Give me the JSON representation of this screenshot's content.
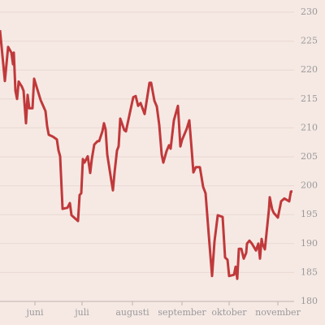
{
  "chart_data": {
    "type": "line",
    "xlim": [
      0,
      181
    ],
    "xticks": [
      {
        "value": 21.5,
        "label": "juni"
      },
      {
        "value": 50.5,
        "label": "juli"
      },
      {
        "value": 81.5,
        "label": "augusti"
      },
      {
        "value": 112,
        "label": "september"
      },
      {
        "value": 141,
        "label": "oktober"
      },
      {
        "value": 171,
        "label": "november"
      }
    ],
    "ylim": [
      180,
      230
    ],
    "yticks": [
      180,
      185,
      190,
      195,
      200,
      205,
      210,
      215,
      220,
      225,
      230
    ],
    "grid": true,
    "series": [
      {
        "color": "#c0393b",
        "x": [
          0,
          3,
          5,
          7,
          8,
          8.5,
          9.5,
          10.5,
          11.5,
          13.5,
          14.5,
          16,
          17,
          18,
          20,
          21,
          22.5,
          25,
          28,
          29,
          30,
          32.5,
          35,
          36,
          37,
          38.5,
          41.5,
          43,
          44,
          48,
          49,
          50,
          51,
          52,
          54,
          55.5,
          56.5,
          58,
          60,
          61,
          63,
          64,
          65,
          66,
          68.5,
          69.5,
          70.5,
          72,
          73,
          74,
          76.5,
          77.5,
          80,
          82,
          83.5,
          85,
          86.5,
          89,
          92,
          93,
          95,
          96.5,
          98,
          99.5,
          100.5,
          102.5,
          104,
          105,
          107,
          109.5,
          111,
          112,
          115,
          116.5,
          118,
          119,
          120.5,
          123,
          124,
          125,
          126.5,
          128.5,
          130.5,
          132,
          134,
          137,
          138.5,
          140,
          141,
          144,
          145,
          146,
          147,
          148.5,
          150,
          151.5,
          152,
          153.5,
          155,
          157.5,
          159,
          160,
          161,
          161.5,
          163,
          165.5,
          166,
          167.5,
          168.5,
          171,
          173,
          175,
          178,
          179,
          180
        ],
        "values": [
          226.9,
          218.1,
          224,
          223,
          221,
          223,
          216.4,
          215,
          218,
          217.1,
          216.4,
          210.8,
          215.7,
          213.4,
          213.4,
          218.5,
          217.1,
          214.8,
          212.9,
          210.3,
          208.8,
          208.5,
          208,
          206.1,
          205.1,
          196,
          196.2,
          197,
          194.9,
          193.9,
          198.4,
          198.7,
          204.6,
          204,
          205.1,
          202.2,
          204.6,
          207.1,
          207.7,
          207.7,
          209.4,
          210.8,
          209.7,
          205.4,
          200.9,
          199.2,
          202.3,
          206.1,
          206.8,
          211.6,
          209.6,
          209.4,
          212.7,
          215.3,
          215.5,
          213.8,
          214.3,
          212.4,
          217.8,
          217.8,
          214.7,
          213.7,
          210.5,
          205.4,
          204,
          206,
          207,
          206.4,
          211.3,
          213.8,
          206.8,
          207.9,
          209.9,
          211.3,
          206.1,
          202.3,
          203.2,
          203.2,
          201.5,
          199.8,
          198.7,
          191.4,
          184.4,
          190.4,
          194.9,
          194.6,
          187.6,
          187.2,
          184.4,
          184.6,
          186,
          183.9,
          189.1,
          189.1,
          187.4,
          188.4,
          190,
          190.5,
          190,
          188.8,
          190,
          187.4,
          190.8,
          190,
          189,
          195.9,
          198,
          195.9,
          195.3,
          194.5,
          197.3,
          197.8,
          197.3,
          199,
          199
        ]
      }
    ]
  }
}
